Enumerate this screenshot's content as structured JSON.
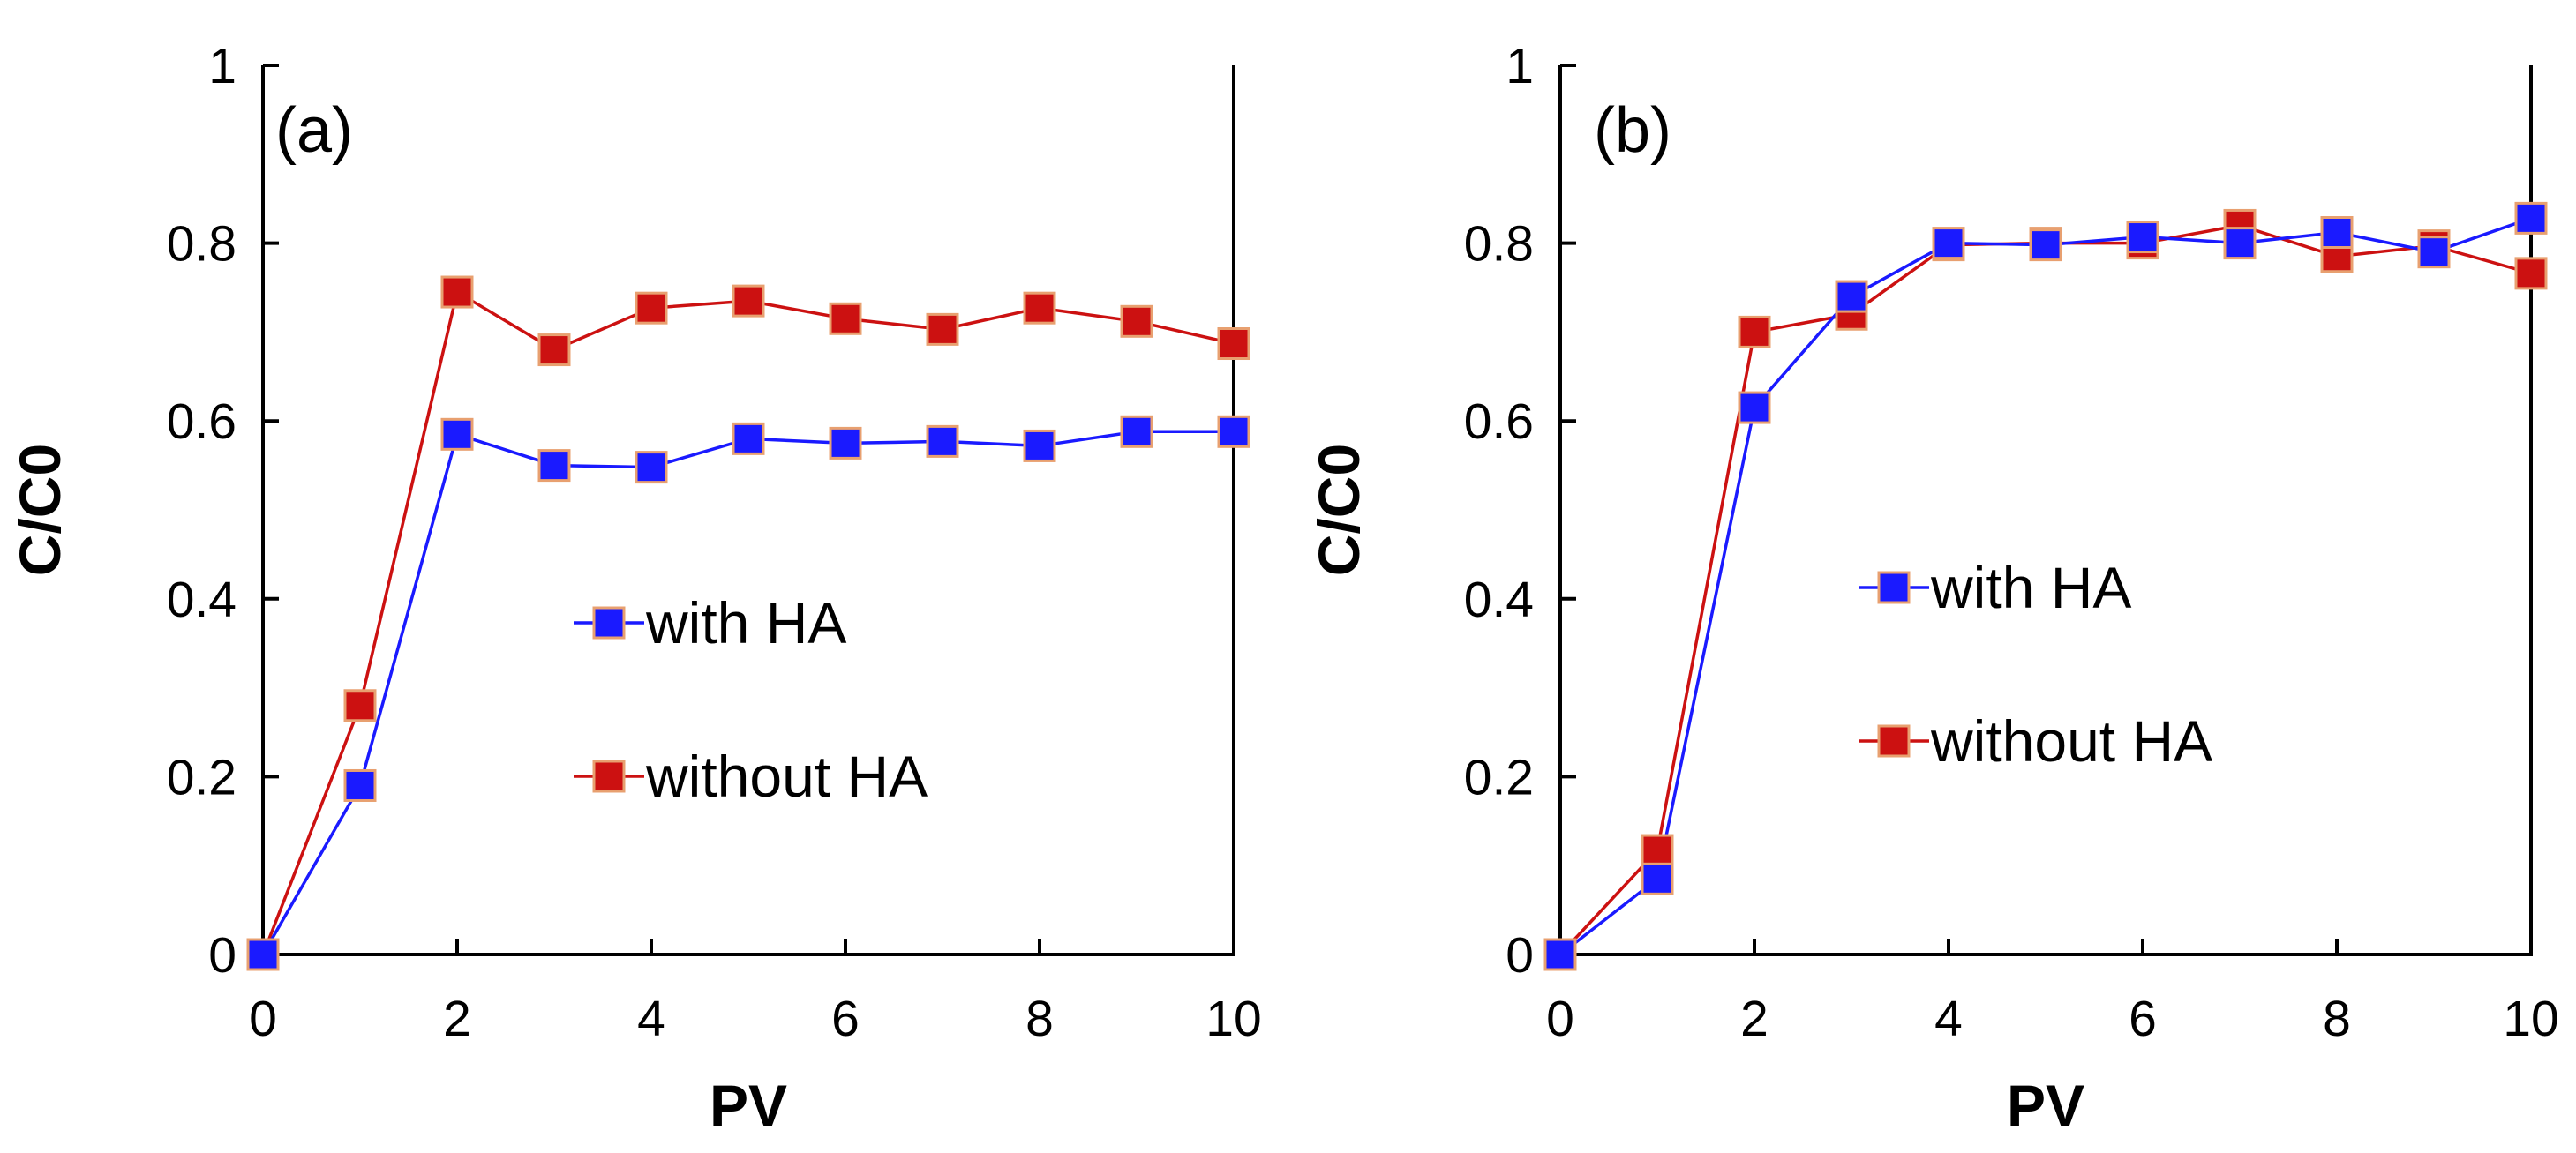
{
  "colors": {
    "with_ha": "#1a1aff",
    "without_ha": "#cc1111",
    "marker_edge": "#e8a070"
  },
  "chart_data": [
    {
      "type": "line",
      "panel_label": "(a)",
      "xlabel": "PV",
      "ylabel": "C/C0",
      "xlim": [
        0,
        10
      ],
      "ylim": [
        0,
        1
      ],
      "xticks": [
        0,
        2,
        4,
        6,
        8,
        10
      ],
      "yticks": [
        0,
        0.2,
        0.4,
        0.6,
        0.8,
        1
      ],
      "ytick_labels": [
        "0",
        "0.2",
        "0.4",
        "0.6",
        "0.8",
        "1"
      ],
      "grid": false,
      "legend_position": "center-right",
      "series": [
        {
          "name": "with HA",
          "color": "#1a1aff",
          "x": [
            0,
            1,
            2,
            3,
            4,
            5,
            6,
            7,
            8,
            9,
            10
          ],
          "y": [
            0,
            0.19,
            0.585,
            0.55,
            0.548,
            0.58,
            0.575,
            0.577,
            0.572,
            0.588,
            0.588
          ]
        },
        {
          "name": "without HA",
          "color": "#cc1111",
          "x": [
            0,
            1,
            2,
            3,
            4,
            5,
            6,
            7,
            8,
            9,
            10
          ],
          "y": [
            0,
            0.28,
            0.745,
            0.68,
            0.727,
            0.735,
            0.715,
            0.703,
            0.727,
            0.712,
            0.687
          ]
        }
      ]
    },
    {
      "type": "line",
      "panel_label": "(b)",
      "xlabel": "PV",
      "ylabel": "C/C0",
      "xlim": [
        0,
        10
      ],
      "ylim": [
        0,
        1
      ],
      "xticks": [
        0,
        2,
        4,
        6,
        8,
        10
      ],
      "yticks": [
        0,
        0.2,
        0.4,
        0.6,
        0.8,
        1
      ],
      "ytick_labels": [
        "0",
        "0.2",
        "0.4",
        "0.6",
        "0.8",
        "1"
      ],
      "grid": false,
      "legend_position": "center-right",
      "series": [
        {
          "name": "with HA",
          "color": "#1a1aff",
          "x": [
            0,
            1,
            2,
            3,
            4,
            5,
            6,
            7,
            8,
            9,
            10
          ],
          "y": [
            0,
            0.085,
            0.615,
            0.74,
            0.8,
            0.798,
            0.807,
            0.8,
            0.812,
            0.79,
            0.828
          ]
        },
        {
          "name": "without HA",
          "color": "#cc1111",
          "x": [
            0,
            1,
            2,
            3,
            4,
            5,
            6,
            7,
            8,
            9,
            10
          ],
          "y": [
            0,
            0.117,
            0.7,
            0.72,
            0.798,
            0.8,
            0.8,
            0.82,
            0.785,
            0.797,
            0.766
          ]
        }
      ]
    }
  ]
}
